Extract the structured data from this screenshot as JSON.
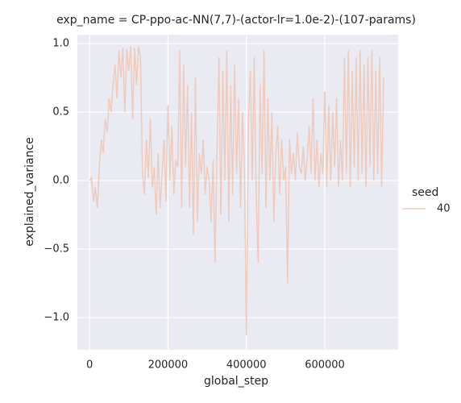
{
  "chart_data": {
    "type": "line",
    "title": "exp_name = CP-ppo-ac-NN(7,7)-(actor-lr=1.0e-2)-(107-params)",
    "xlabel": "global_step",
    "ylabel": "explained_variance",
    "legend_title": "seed",
    "legend": "right",
    "grid": true,
    "xlim": [
      -31000,
      787000
    ],
    "ylim": [
      -1.235,
      1.065
    ],
    "xticks": [
      0,
      200000,
      400000,
      600000
    ],
    "yticks": [
      {
        "value": 1.0,
        "label": "1.0"
      },
      0.5,
      {
        "value": 0.0,
        "label": "0.0"
      },
      {
        "value": -0.5,
        "label": "−0.5"
      },
      {
        "value": -1.0,
        "label": "−1.0"
      }
    ],
    "x": [
      0,
      5000,
      10000,
      15000,
      20000,
      25000,
      30000,
      35000,
      40000,
      45000,
      50000,
      55000,
      60000,
      65000,
      70000,
      75000,
      80000,
      85000,
      90000,
      95000,
      100000,
      105000,
      110000,
      115000,
      120000,
      125000,
      130000,
      135000,
      140000,
      145000,
      150000,
      155000,
      160000,
      165000,
      170000,
      175000,
      180000,
      185000,
      190000,
      195000,
      200000,
      205000,
      210000,
      215000,
      220000,
      225000,
      230000,
      235000,
      240000,
      245000,
      250000,
      255000,
      260000,
      265000,
      270000,
      275000,
      280000,
      285000,
      290000,
      295000,
      300000,
      305000,
      310000,
      315000,
      320000,
      325000,
      330000,
      335000,
      340000,
      345000,
      350000,
      355000,
      360000,
      365000,
      370000,
      375000,
      380000,
      385000,
      390000,
      395000,
      400000,
      405000,
      410000,
      415000,
      420000,
      425000,
      430000,
      435000,
      440000,
      445000,
      450000,
      455000,
      460000,
      465000,
      470000,
      475000,
      480000,
      485000,
      490000,
      495000,
      500000,
      505000,
      510000,
      515000,
      520000,
      525000,
      530000,
      535000,
      540000,
      545000,
      550000,
      555000,
      560000,
      565000,
      570000,
      575000,
      580000,
      585000,
      590000,
      595000,
      600000,
      605000,
      610000,
      615000,
      620000,
      625000,
      630000,
      635000,
      640000,
      645000,
      650000,
      655000,
      660000,
      665000,
      670000,
      675000,
      680000,
      685000,
      690000,
      695000,
      700000,
      705000,
      710000,
      715000,
      720000,
      725000,
      730000,
      735000,
      740000,
      745000,
      750000
    ],
    "series": [
      {
        "name": "40",
        "color": "#eecbbf",
        "values": [
          0.0,
          0.02,
          -0.15,
          -0.05,
          -0.2,
          0.1,
          0.3,
          0.2,
          0.45,
          0.35,
          0.6,
          0.5,
          0.7,
          0.85,
          0.6,
          0.95,
          0.75,
          0.97,
          0.5,
          0.96,
          0.8,
          0.98,
          0.45,
          0.97,
          0.7,
          0.98,
          0.9,
          0.05,
          -0.1,
          0.3,
          0.02,
          0.45,
          -0.05,
          0.1,
          -0.25,
          0.2,
          -0.2,
          0.05,
          0.3,
          -0.15,
          0.55,
          0.0,
          0.4,
          -0.1,
          0.15,
          0.1,
          0.95,
          -0.2,
          0.85,
          0.1,
          0.7,
          -0.2,
          0.5,
          -0.4,
          0.75,
          -0.3,
          0.2,
          0.05,
          0.3,
          -0.1,
          0.1,
          0.0,
          -0.3,
          0.15,
          -0.6,
          0.2,
          0.9,
          -0.25,
          0.8,
          0.0,
          0.95,
          -0.3,
          0.7,
          -0.1,
          0.85,
          0.05,
          0.6,
          -0.2,
          0.5,
          0.1,
          -1.13,
          0.4,
          0.8,
          0.0,
          0.9,
          -0.1,
          -0.6,
          0.7,
          0.05,
          0.95,
          -0.2,
          0.6,
          0.0,
          0.5,
          -0.3,
          0.2,
          0.4,
          -0.1,
          0.3,
          0.0,
          0.1,
          -0.75,
          0.3,
          0.05,
          0.2,
          0.0,
          0.35,
          0.1,
          0.05,
          0.25,
          0.0,
          0.15,
          0.4,
          0.05,
          0.6,
          0.0,
          0.3,
          -0.05,
          0.2,
          0.05,
          0.65,
          -0.05,
          0.55,
          0.0,
          0.5,
          0.1,
          0.6,
          -0.05,
          0.3,
          0.0,
          0.9,
          0.05,
          0.95,
          -0.05,
          0.8,
          0.1,
          0.9,
          0.0,
          0.95,
          0.05,
          0.85,
          -0.05,
          0.9,
          0.1,
          0.95,
          0.0,
          0.8,
          0.05,
          0.9,
          -0.05,
          0.75
        ]
      }
    ]
  }
}
